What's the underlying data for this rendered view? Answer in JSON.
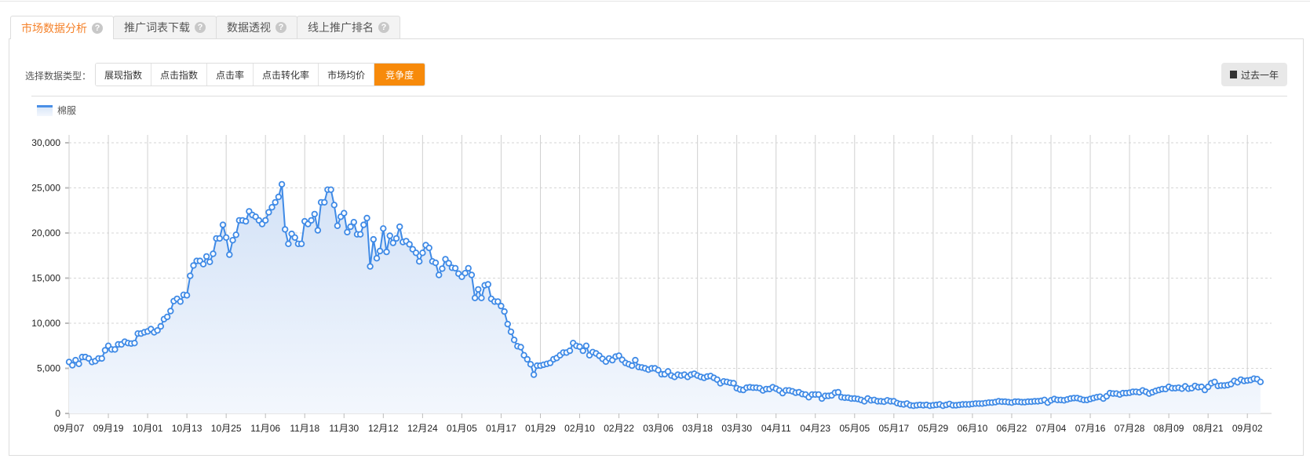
{
  "tabs": [
    {
      "label": "市场数据分析",
      "active": true
    },
    {
      "label": "推广词表下载",
      "active": false
    },
    {
      "label": "数据透视",
      "active": false
    },
    {
      "label": "线上推广排名",
      "active": false
    }
  ],
  "help_glyph": "?",
  "toolbar": {
    "type_label": "选择数据类型：",
    "types": [
      {
        "label": "展现指数",
        "active": false
      },
      {
        "label": "点击指数",
        "active": false
      },
      {
        "label": "点击率",
        "active": false
      },
      {
        "label": "点击转化率",
        "active": false
      },
      {
        "label": "市场均价",
        "active": false
      },
      {
        "label": "竞争度",
        "active": true
      }
    ],
    "range_label": "过去一年",
    "range_icon": "calendar-icon"
  },
  "colors": {
    "accent": "#f78a0a",
    "tab_active_text": "#f5822a",
    "series": "#3f8ae6"
  },
  "chart_data": {
    "type": "area",
    "legend": [
      {
        "name": "棉服"
      }
    ],
    "legend_position": "top-left",
    "ylim": [
      0,
      30000
    ],
    "yticks": [
      "0",
      "5,000",
      "10,000",
      "15,000",
      "20,000",
      "25,000",
      "30,000"
    ],
    "xticks": [
      "09月07",
      "09月19",
      "10月01",
      "10月13",
      "10月25",
      "11月06",
      "11月18",
      "11月30",
      "12月12",
      "12月24",
      "01月05",
      "01月17",
      "01月29",
      "02月10",
      "02月22",
      "03月06",
      "03月18",
      "03月30",
      "04月11",
      "04月23",
      "05月05",
      "05月17",
      "05月29",
      "06月10",
      "06月22",
      "07月04",
      "07月16",
      "07月28",
      "08月09",
      "08月21",
      "09月02"
    ],
    "grid": {
      "horizontal": "dashed",
      "vertical": "solid"
    },
    "markers": "hollow-circle",
    "series": [
      {
        "name": "棉服",
        "values": [
          5700,
          5350,
          5900,
          5500,
          6250,
          6250,
          6100,
          5700,
          5800,
          6100,
          6100,
          7000,
          7500,
          7100,
          7100,
          7650,
          7650,
          7950,
          7800,
          7750,
          7800,
          8850,
          8850,
          9000,
          9100,
          9350,
          9000,
          9200,
          9650,
          10450,
          10700,
          11350,
          12450,
          12700,
          12400,
          13150,
          13100,
          15250,
          16400,
          16900,
          16900,
          16550,
          17400,
          16800,
          17700,
          19400,
          19400,
          20900,
          19500,
          17600,
          19200,
          19800,
          21400,
          21400,
          21300,
          22400,
          22000,
          21800,
          21400,
          21000,
          21400,
          22300,
          22850,
          23400,
          24000,
          25400,
          20400,
          18800,
          19900,
          19500,
          18800,
          18800,
          21300,
          21000,
          21400,
          22100,
          20300,
          23400,
          23400,
          24800,
          24800,
          23100,
          20800,
          21800,
          22200,
          20100,
          20700,
          21200,
          19850,
          19850,
          20900,
          21650,
          16300,
          19300,
          17200,
          18000,
          20500,
          17900,
          19700,
          18900,
          19400,
          20700,
          19000,
          19100,
          18750,
          18200,
          17800,
          16850,
          17800,
          18650,
          18350,
          16850,
          16700,
          15350,
          16050,
          17100,
          16650,
          16150,
          16100,
          15500,
          15150,
          15550,
          16100,
          15350,
          12800,
          13750,
          12800,
          14200,
          14300,
          12700,
          12400,
          12400,
          11900,
          11300,
          9900,
          9050,
          8150,
          7450,
          7350,
          6450,
          6000,
          5450,
          4300,
          5300,
          5300,
          5400,
          5500,
          5600,
          6000,
          6150,
          6450,
          6750,
          6750,
          6950,
          7800,
          7500,
          7400,
          6950,
          7500,
          6450,
          6800,
          6650,
          6400,
          6050,
          5750,
          6100,
          5900,
          6300,
          6400,
          5950,
          5600,
          5450,
          5300,
          5900,
          5150,
          5100,
          5000,
          4850,
          5000,
          5000,
          4800,
          4350,
          4350,
          4650,
          4200,
          4050,
          4300,
          4200,
          4300,
          4050,
          4300,
          4400,
          4200,
          4050,
          3950,
          4100,
          4150,
          3950,
          3750,
          3350,
          3550,
          3500,
          3400,
          3350,
          2800,
          2650,
          2600,
          2850,
          2900,
          2850,
          2850,
          2800,
          2550,
          2700,
          2700,
          2900,
          2750,
          2550,
          2250,
          2550,
          2550,
          2450,
          2300,
          2350,
          2150,
          2100,
          1800,
          2100,
          2100,
          2100,
          1650,
          1950,
          1950,
          2000,
          2300,
          2350,
          1800,
          1750,
          1750,
          1650,
          1650,
          1600,
          1500,
          1350,
          1650,
          1450,
          1500,
          1350,
          1350,
          1300,
          1450,
          1350,
          1350,
          1150,
          1050,
          1000,
          1100,
          900,
          850,
          900,
          950,
          900,
          950,
          850,
          900,
          950,
          1000,
          850,
          950,
          1050,
          900,
          900,
          950,
          1000,
          1000,
          1000,
          1050,
          1100,
          1100,
          1100,
          1150,
          1200,
          1200,
          1250,
          1350,
          1300,
          1300,
          1250,
          1200,
          1300,
          1300,
          1250,
          1250,
          1300,
          1300,
          1350,
          1350,
          1400,
          1500,
          1200,
          1450,
          1600,
          1500,
          1500,
          1450,
          1550,
          1650,
          1700,
          1700,
          1600,
          1500,
          1500,
          1600,
          1700,
          1800,
          1850,
          1650,
          1900,
          2250,
          2200,
          2200,
          2100,
          2250,
          2250,
          2300,
          2400,
          2400,
          2350,
          2550,
          2400,
          2200,
          2350,
          2500,
          2600,
          2700,
          2700,
          2950,
          2800,
          2800,
          2850,
          2750,
          3000,
          2750,
          2800,
          3050,
          2900,
          2950,
          2600,
          2950,
          3350,
          3500,
          3050,
          3100,
          3100,
          3150,
          3250,
          3600,
          3450,
          3750,
          3600,
          3650,
          3700,
          3850,
          3800,
          3500
        ]
      }
    ]
  }
}
